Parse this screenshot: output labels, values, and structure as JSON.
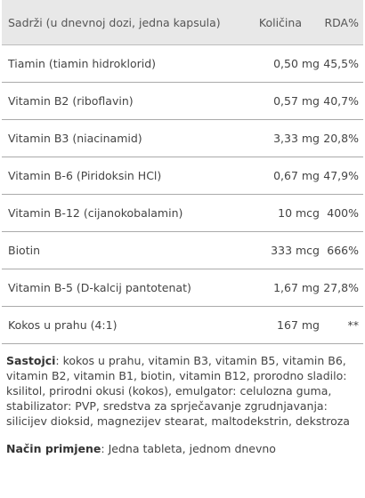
{
  "table": {
    "header": {
      "name": "Sadrži (u dnevnoj dozi, jedna kapsula)",
      "qty": "Količina",
      "rda": "RDA%"
    },
    "rows": [
      {
        "name": "Tiamin (tiamin hidroklorid)",
        "qty": "0,50 mg",
        "rda": "45,5%"
      },
      {
        "name": "Vitamin B2 (riboflavin)",
        "qty": "0,57 mg",
        "rda": "40,7%"
      },
      {
        "name": "Vitamin B3 (niacinamid)",
        "qty": "3,33 mg",
        "rda": "20,8%"
      },
      {
        "name": "Vitamin B-6 (Piridoksin HCl)",
        "qty": "0,67 mg",
        "rda": "47,9%"
      },
      {
        "name": "Vitamin B-12 (cijanokobalamin)",
        "qty": "10 mcg",
        "rda": "400%"
      },
      {
        "name": "Biotin",
        "qty": "333 mcg",
        "rda": "666%"
      },
      {
        "name": "Vitamin B-5 (D-kalcij pantotenat)",
        "qty": "1,67 mg",
        "rda": "27,8%"
      },
      {
        "name": "Kokos u prahu (4:1)",
        "qty": "167 mg",
        "rda": "**"
      }
    ]
  },
  "ingredients": {
    "label": "Sastojci",
    "text": ": kokos u prahu, vitamin B3, vitamin B5, vitamin B6, vitamin B2, vitamin B1, biotin, vitamin B12, prorodno sladilo: ksilitol, prirodni okusi (kokos), emulgator: celulozna guma, stabilizator: PVP, sredstva za sprječavanje zgrudnjavanja: silicijev dioksid, magnezijev stearat, maltodekstrin, dekstroza"
  },
  "usage": {
    "label": "Način primjene",
    "text": ": Jedna tableta, jednom dnevno"
  }
}
